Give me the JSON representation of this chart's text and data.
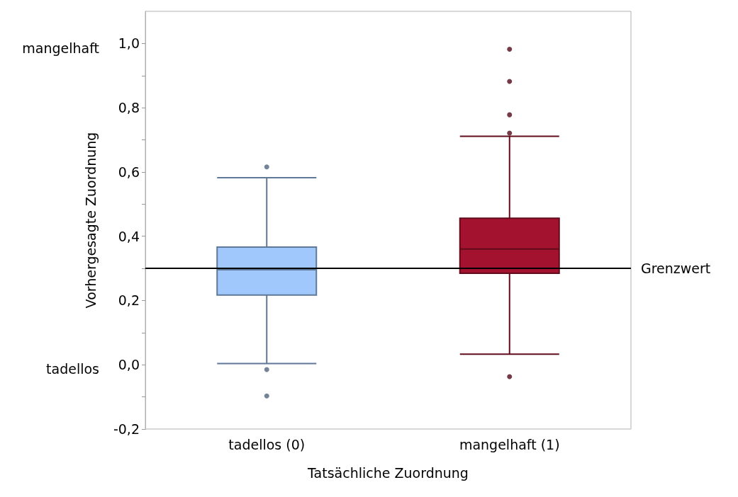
{
  "chart_data": {
    "type": "box",
    "xlabel": "Tatsächliche Zuordnung",
    "ylabel": "Vorhergesagte Zuordnung",
    "categories": [
      "tadellos (0)",
      "mangelhaft (1)"
    ],
    "colors": [
      "#a0c8fc",
      "#a3122e"
    ],
    "boxes": [
      {
        "low": 0.004,
        "q1": 0.217,
        "median": 0.296,
        "q3": 0.366,
        "high": 0.582,
        "outliers": [
          0.616,
          -0.015,
          -0.097
        ]
      },
      {
        "low": 0.033,
        "q1": 0.285,
        "median": 0.36,
        "q3": 0.456,
        "high": 0.711,
        "outliers": [
          0.982,
          0.882,
          0.778,
          0.721,
          -0.037
        ]
      }
    ],
    "ylim": [
      -0.2,
      1.1
    ],
    "yticks": [
      {
        "value": -0.2,
        "label": "-0,2"
      },
      {
        "value": -0.1,
        "label": null
      },
      {
        "value": 0,
        "label": "0,0"
      },
      {
        "value": 0.1,
        "label": null
      },
      {
        "value": 0.2,
        "label": "0,2"
      },
      {
        "value": 0.3,
        "label": null
      },
      {
        "value": 0.4,
        "label": "0,4"
      },
      {
        "value": 0.5,
        "label": null
      },
      {
        "value": 0.6,
        "label": "0,6"
      },
      {
        "value": 0.7,
        "label": null
      },
      {
        "value": 0.8,
        "label": "0,8"
      },
      {
        "value": 0.9,
        "label": null
      },
      {
        "value": 1,
        "label": "1,0"
      }
    ],
    "ref_lines": [
      {
        "axis": "y",
        "value": 0.3,
        "label": "Grenzwert",
        "color": "#000000"
      }
    ],
    "annotations": [
      "mangelhaft",
      "tadellos"
    ],
    "grid": false
  }
}
